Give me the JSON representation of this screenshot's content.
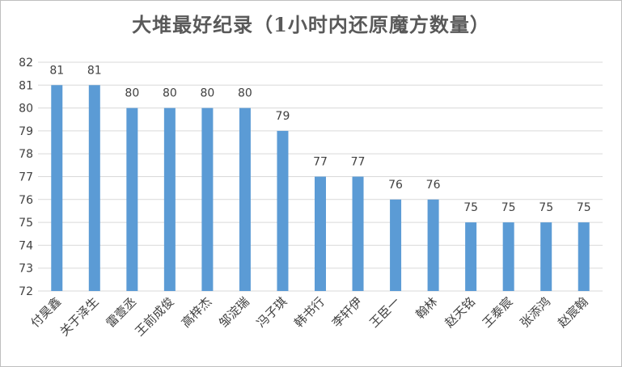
{
  "chart_data": {
    "type": "bar",
    "title": "大堆最好纪录（1小时内还原魔方数量）",
    "xlabel": "",
    "ylabel": "",
    "ylim": [
      72,
      82
    ],
    "yticks": [
      72,
      73,
      74,
      75,
      76,
      77,
      78,
      79,
      80,
      81,
      82
    ],
    "categories": [
      "付昊鑫",
      "关于泽生",
      "雷壹丞",
      "王前成俊",
      "高梓杰",
      "邹淀瑞",
      "冯子琪",
      "韩书行",
      "李轩伊",
      "王臣一",
      "翰林",
      "赵天铭",
      "王泰宸",
      "张添鸿",
      "赵宸翰"
    ],
    "values": [
      81,
      81,
      80,
      80,
      80,
      80,
      79,
      77,
      77,
      76,
      76,
      75,
      75,
      75,
      75
    ],
    "bar_color": "#5b9bd5",
    "grid": true,
    "legend": "none"
  }
}
